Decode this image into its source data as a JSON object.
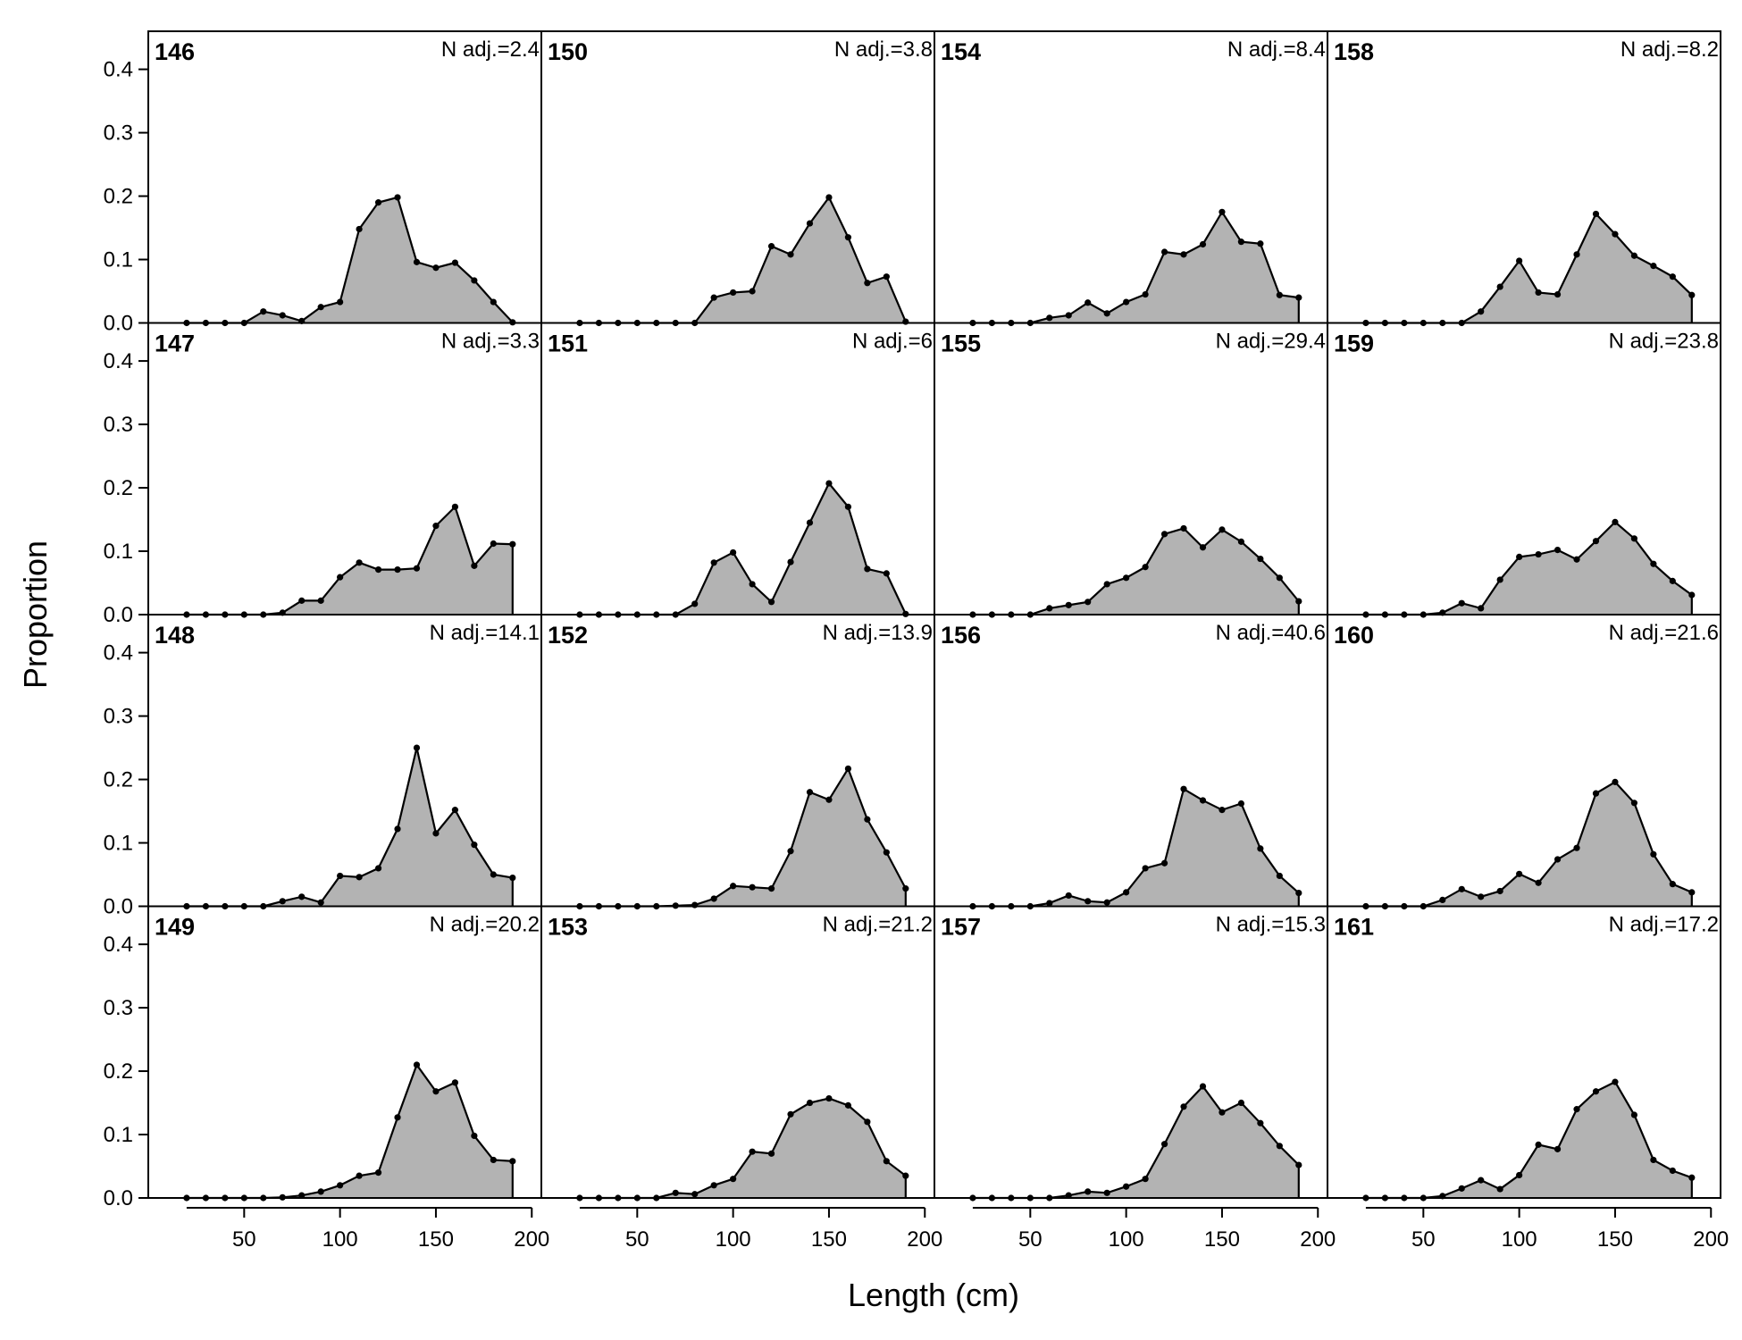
{
  "chart_data": {
    "type": "area",
    "layout": "4x4 panel grid (columns: 146-149, 150-153, 154-157, 158-161)",
    "xlabel": "Length (cm)",
    "ylabel": "Proportion",
    "xlim": [
      0,
      205
    ],
    "ylim": [
      0,
      0.46
    ],
    "x_ticks": [
      50,
      100,
      150,
      200
    ],
    "y_ticks": [
      0.0,
      0.1,
      0.2,
      0.3,
      0.4
    ],
    "x_tick_labels": [
      "50",
      "100",
      "150",
      "200"
    ],
    "y_tick_labels": [
      "0.0",
      "0.1",
      "0.2",
      "0.3",
      "0.4"
    ],
    "x": [
      20,
      30,
      40,
      50,
      60,
      70,
      80,
      90,
      100,
      110,
      120,
      130,
      140,
      150,
      160,
      170,
      180,
      190
    ],
    "fill_color": "#b3b3b3",
    "line_color": "#000000",
    "panels": [
      {
        "id": "146",
        "n_label": "N adj.=2.4",
        "values": [
          0,
          0,
          0,
          0,
          0.018,
          0.012,
          0.003,
          0.025,
          0.033,
          0.148,
          0.19,
          0.198,
          0.096,
          0.087,
          0.095,
          0.067,
          0.033,
          0.001
        ]
      },
      {
        "id": "147",
        "n_label": "N adj.=3.3",
        "values": [
          0,
          0,
          0,
          0,
          0,
          0.003,
          0.022,
          0.022,
          0.059,
          0.082,
          0.071,
          0.071,
          0.073,
          0.14,
          0.17,
          0.077,
          0.112,
          0.111
        ]
      },
      {
        "id": "148",
        "n_label": "N adj.=14.1",
        "values": [
          0,
          0,
          0,
          0,
          0,
          0.008,
          0.015,
          0.006,
          0.048,
          0.046,
          0.06,
          0.122,
          0.25,
          0.115,
          0.152,
          0.097,
          0.05,
          0.045
        ]
      },
      {
        "id": "149",
        "n_label": "N adj.=20.2",
        "values": [
          0,
          0,
          0,
          0,
          0,
          0.001,
          0.004,
          0.01,
          0.02,
          0.035,
          0.04,
          0.127,
          0.21,
          0.168,
          0.182,
          0.098,
          0.06,
          0.058
        ]
      },
      {
        "id": "150",
        "n_label": "N adj.=3.8",
        "values": [
          0,
          0,
          0,
          0,
          0,
          0,
          0,
          0.04,
          0.048,
          0.05,
          0.121,
          0.108,
          0.157,
          0.198,
          0.135,
          0.063,
          0.073,
          0.002
        ]
      },
      {
        "id": "151",
        "n_label": "N adj.=6",
        "values": [
          0,
          0,
          0,
          0,
          0,
          0,
          0.017,
          0.082,
          0.098,
          0.048,
          0.02,
          0.083,
          0.145,
          0.207,
          0.17,
          0.072,
          0.065,
          0.001
        ]
      },
      {
        "id": "152",
        "n_label": "N adj.=13.9",
        "values": [
          0,
          0,
          0,
          0,
          0,
          0.001,
          0.002,
          0.012,
          0.032,
          0.03,
          0.028,
          0.087,
          0.18,
          0.168,
          0.217,
          0.137,
          0.085,
          0.028
        ]
      },
      {
        "id": "153",
        "n_label": "N adj.=21.2",
        "values": [
          0,
          0,
          0,
          0,
          0,
          0.008,
          0.006,
          0.02,
          0.03,
          0.073,
          0.07,
          0.132,
          0.15,
          0.157,
          0.146,
          0.12,
          0.058,
          0.035
        ]
      },
      {
        "id": "154",
        "n_label": "N adj.=8.4",
        "values": [
          0,
          0,
          0,
          0,
          0.008,
          0.012,
          0.032,
          0.015,
          0.033,
          0.045,
          0.112,
          0.108,
          0.124,
          0.175,
          0.128,
          0.125,
          0.044,
          0.04
        ]
      },
      {
        "id": "155",
        "n_label": "N adj.=29.4",
        "values": [
          0,
          0,
          0,
          0,
          0.01,
          0.015,
          0.02,
          0.048,
          0.058,
          0.075,
          0.127,
          0.136,
          0.106,
          0.134,
          0.115,
          0.088,
          0.058,
          0.021
        ]
      },
      {
        "id": "156",
        "n_label": "N adj.=40.6",
        "values": [
          0,
          0,
          0,
          0,
          0.005,
          0.017,
          0.008,
          0.006,
          0.022,
          0.06,
          0.068,
          0.185,
          0.167,
          0.152,
          0.162,
          0.091,
          0.048,
          0.021
        ]
      },
      {
        "id": "157",
        "n_label": "N adj.=15.3",
        "values": [
          0,
          0,
          0,
          0,
          0,
          0.004,
          0.01,
          0.008,
          0.018,
          0.03,
          0.085,
          0.144,
          0.176,
          0.135,
          0.15,
          0.118,
          0.082,
          0.052
        ]
      },
      {
        "id": "158",
        "n_label": "N adj.=8.2",
        "values": [
          0,
          0,
          0,
          0,
          0,
          0,
          0.018,
          0.057,
          0.098,
          0.048,
          0.045,
          0.108,
          0.172,
          0.14,
          0.106,
          0.09,
          0.073,
          0.044
        ]
      },
      {
        "id": "159",
        "n_label": "N adj.=23.8",
        "values": [
          0,
          0,
          0,
          0,
          0.003,
          0.018,
          0.01,
          0.055,
          0.091,
          0.095,
          0.102,
          0.087,
          0.116,
          0.146,
          0.12,
          0.08,
          0.053,
          0.031
        ]
      },
      {
        "id": "160",
        "n_label": "N adj.=21.6",
        "values": [
          0,
          0,
          0,
          0,
          0.01,
          0.027,
          0.015,
          0.024,
          0.051,
          0.037,
          0.074,
          0.092,
          0.178,
          0.196,
          0.163,
          0.082,
          0.035,
          0.022
        ]
      },
      {
        "id": "161",
        "n_label": "N adj.=17.2",
        "values": [
          0,
          0,
          0,
          0,
          0.003,
          0.015,
          0.028,
          0.014,
          0.036,
          0.084,
          0.077,
          0.14,
          0.168,
          0.183,
          0.131,
          0.06,
          0.043,
          0.032
        ]
      }
    ]
  }
}
